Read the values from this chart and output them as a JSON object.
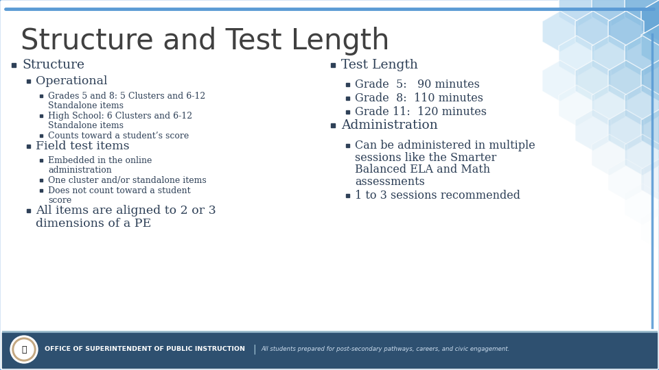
{
  "title": "Structure and Test Length",
  "bg_color": "#ffffff",
  "border_color": "#5b9bd5",
  "title_color": "#404040",
  "text_color": "#2e4057",
  "footer_bg": "#2e5070",
  "footer_text": "OFFICE OF SUPERINTENDENT OF PUBLIC INSTRUCTION",
  "footer_subtext": "All students prepared for post-secondary pathways, careers, and civic engagement.",
  "bullet_color": "#2e4057",
  "left_col": [
    {
      "level": 0,
      "text": "Structure",
      "size": 13.5
    },
    {
      "level": 1,
      "text": "Operational",
      "size": 12.5
    },
    {
      "level": 2,
      "text": "Grades 5 and 8: 5 Clusters and 6-12\nStandalone items",
      "size": 9.0
    },
    {
      "level": 2,
      "text": "High School: 6 Clusters and 6-12\nStandalone items",
      "size": 9.0
    },
    {
      "level": 2,
      "text": "Counts toward a student’s score",
      "size": 9.0
    },
    {
      "level": 1,
      "text": "Field test items",
      "size": 12.5
    },
    {
      "level": 2,
      "text": "Embedded in the online\nadministration",
      "size": 9.0
    },
    {
      "level": 2,
      "text": "One cluster and/or standalone items",
      "size": 9.0
    },
    {
      "level": 2,
      "text": "Does not count toward a student\nscore",
      "size": 9.0
    },
    {
      "level": 1,
      "text": "All items are aligned to 2 or 3\ndimensions of a PE",
      "size": 12.5
    }
  ],
  "right_col": [
    {
      "level": 0,
      "text": "Test Length",
      "size": 13.5
    },
    {
      "level": 1,
      "text": "Grade  5:   90 minutes",
      "size": 11.5
    },
    {
      "level": 1,
      "text": "Grade  8:  110 minutes",
      "size": 11.5
    },
    {
      "level": 1,
      "text": "Grade 11:  120 minutes",
      "size": 11.5
    },
    {
      "level": 0,
      "text": "Administration",
      "size": 13.5
    },
    {
      "level": 1,
      "text": "Can be administered in multiple\nsessions like the Smarter\nBalanced ELA and Math\nassessments",
      "size": 11.5
    },
    {
      "level": 1,
      "text": "1 to 3 sessions recommended",
      "size": 11.5
    }
  ],
  "accent_blue": "#5b9bd5",
  "dark_blue": "#2e5070",
  "hex_grid": [
    [
      840,
      530,
      30,
      "#b8d8ef",
      0.85
    ],
    [
      888,
      530,
      30,
      "#9dc8e7",
      0.9
    ],
    [
      936,
      530,
      30,
      "#82b8df",
      0.95
    ],
    [
      960,
      510,
      30,
      "#6aa8d7",
      1.0
    ],
    [
      816,
      494,
      30,
      "#c8e2f4",
      0.75
    ],
    [
      864,
      494,
      30,
      "#add2ec",
      0.82
    ],
    [
      912,
      494,
      30,
      "#92c2e4",
      0.88
    ],
    [
      960,
      474,
      30,
      "#77b2dc",
      0.95
    ],
    [
      840,
      458,
      30,
      "#d2e9f6",
      0.65
    ],
    [
      888,
      458,
      30,
      "#b7d9ee",
      0.72
    ],
    [
      936,
      458,
      30,
      "#9cc9e6",
      0.8
    ],
    [
      816,
      422,
      30,
      "#dceef8",
      0.55
    ],
    [
      864,
      422,
      30,
      "#c1deef",
      0.63
    ],
    [
      912,
      422,
      30,
      "#a6cee7",
      0.72
    ],
    [
      960,
      422,
      30,
      "#8bbee0",
      0.82
    ],
    [
      840,
      386,
      30,
      "#e5f3fa",
      0.45
    ],
    [
      888,
      386,
      30,
      "#cae3f2",
      0.55
    ],
    [
      936,
      386,
      30,
      "#afd3ea",
      0.65
    ],
    [
      864,
      350,
      30,
      "#d4e8f4",
      0.45
    ],
    [
      912,
      350,
      30,
      "#b9d8ec",
      0.55
    ],
    [
      960,
      350,
      30,
      "#9ec8e4",
      0.65
    ],
    [
      888,
      314,
      30,
      "#ddedf6",
      0.35
    ],
    [
      936,
      314,
      30,
      "#c2ddef",
      0.45
    ],
    [
      912,
      278,
      30,
      "#e6f2f8",
      0.25
    ],
    [
      960,
      278,
      30,
      "#cbdfef",
      0.35
    ],
    [
      936,
      242,
      30,
      "#eef6fb",
      0.18
    ],
    [
      960,
      206,
      30,
      "#f3f8fc",
      0.12
    ]
  ]
}
